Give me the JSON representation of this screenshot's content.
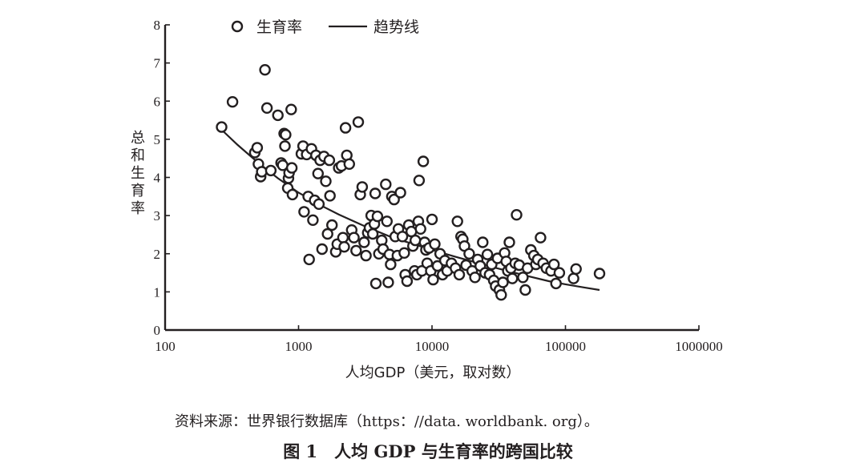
{
  "chart_data": {
    "type": "scatter",
    "xscale": "log",
    "xlim": [
      100,
      1000000
    ],
    "ylim": [
      0,
      8
    ],
    "xticks": [
      "100",
      "1000",
      "10000",
      "100000",
      "1000000"
    ],
    "yticks": [
      "0",
      "1",
      "2",
      "3",
      "4",
      "5",
      "6",
      "7",
      "8"
    ],
    "xlabel": "人均GDP（美元，取对数）",
    "ylabel": "总和生育率",
    "legend": {
      "scatter": "生育率",
      "line": "趋势线",
      "position": "top-left"
    },
    "series": [
      {
        "name": "生育率",
        "kind": "scatter",
        "points": [
          [
            265,
            5.32
          ],
          [
            320,
            5.98
          ],
          [
            470,
            4.65
          ],
          [
            490,
            4.78
          ],
          [
            500,
            4.35
          ],
          [
            520,
            4.02
          ],
          [
            530,
            4.15
          ],
          [
            560,
            6.82
          ],
          [
            580,
            5.82
          ],
          [
            620,
            4.18
          ],
          [
            700,
            5.63
          ],
          [
            740,
            4.38
          ],
          [
            760,
            4.32
          ],
          [
            780,
            5.15
          ],
          [
            790,
            4.82
          ],
          [
            800,
            5.12
          ],
          [
            830,
            3.72
          ],
          [
            840,
            3.98
          ],
          [
            850,
            4.12
          ],
          [
            880,
            5.78
          ],
          [
            890,
            4.25
          ],
          [
            900,
            3.55
          ],
          [
            1050,
            4.62
          ],
          [
            1080,
            4.82
          ],
          [
            1100,
            3.1
          ],
          [
            1150,
            4.6
          ],
          [
            1180,
            3.5
          ],
          [
            1200,
            1.85
          ],
          [
            1250,
            4.75
          ],
          [
            1280,
            2.88
          ],
          [
            1320,
            3.4
          ],
          [
            1350,
            4.58
          ],
          [
            1400,
            4.1
          ],
          [
            1420,
            3.3
          ],
          [
            1450,
            4.45
          ],
          [
            1500,
            2.12
          ],
          [
            1550,
            4.55
          ],
          [
            1600,
            3.9
          ],
          [
            1650,
            2.52
          ],
          [
            1700,
            4.45
          ],
          [
            1720,
            3.52
          ],
          [
            1780,
            2.75
          ],
          [
            1900,
            2.05
          ],
          [
            1950,
            2.25
          ],
          [
            2000,
            4.25
          ],
          [
            2100,
            4.3
          ],
          [
            2150,
            2.42
          ],
          [
            2200,
            2.18
          ],
          [
            2250,
            5.3
          ],
          [
            2300,
            4.58
          ],
          [
            2400,
            4.35
          ],
          [
            2500,
            2.62
          ],
          [
            2600,
            2.42
          ],
          [
            2700,
            2.08
          ],
          [
            2800,
            5.45
          ],
          [
            2900,
            3.55
          ],
          [
            3000,
            3.75
          ],
          [
            3100,
            2.3
          ],
          [
            3200,
            1.95
          ],
          [
            3300,
            2.55
          ],
          [
            3400,
            2.68
          ],
          [
            3500,
            3.0
          ],
          [
            3600,
            2.52
          ],
          [
            3700,
            2.78
          ],
          [
            3750,
            3.58
          ],
          [
            3800,
            1.22
          ],
          [
            3900,
            2.98
          ],
          [
            4000,
            2.0
          ],
          [
            4200,
            2.35
          ],
          [
            4300,
            2.12
          ],
          [
            4500,
            3.82
          ],
          [
            4600,
            2.85
          ],
          [
            4700,
            1.25
          ],
          [
            4800,
            1.98
          ],
          [
            4900,
            1.72
          ],
          [
            5000,
            3.5
          ],
          [
            5200,
            3.42
          ],
          [
            5300,
            2.45
          ],
          [
            5500,
            1.95
          ],
          [
            5600,
            2.65
          ],
          [
            5800,
            3.6
          ],
          [
            6000,
            2.45
          ],
          [
            6200,
            2.02
          ],
          [
            6300,
            1.45
          ],
          [
            6500,
            1.28
          ],
          [
            6700,
            2.75
          ],
          [
            7000,
            2.58
          ],
          [
            7200,
            2.2
          ],
          [
            7400,
            1.55
          ],
          [
            7500,
            2.35
          ],
          [
            7700,
            1.45
          ],
          [
            7900,
            2.85
          ],
          [
            8000,
            3.92
          ],
          [
            8200,
            2.65
          ],
          [
            8400,
            1.55
          ],
          [
            8600,
            4.42
          ],
          [
            8800,
            2.3
          ],
          [
            9000,
            2.1
          ],
          [
            9200,
            1.75
          ],
          [
            9500,
            2.15
          ],
          [
            9800,
            1.55
          ],
          [
            10000,
            2.9
          ],
          [
            10200,
            1.32
          ],
          [
            10500,
            2.25
          ],
          [
            11000,
            1.68
          ],
          [
            11500,
            2.0
          ],
          [
            12000,
            1.45
          ],
          [
            12500,
            1.82
          ],
          [
            13000,
            1.55
          ],
          [
            14000,
            1.75
          ],
          [
            15000,
            1.62
          ],
          [
            15500,
            2.85
          ],
          [
            16000,
            1.45
          ],
          [
            16500,
            2.45
          ],
          [
            17000,
            2.38
          ],
          [
            17500,
            2.2
          ],
          [
            18000,
            1.7
          ],
          [
            19000,
            2.0
          ],
          [
            20000,
            1.55
          ],
          [
            21000,
            1.38
          ],
          [
            22000,
            1.85
          ],
          [
            23000,
            1.68
          ],
          [
            24000,
            2.3
          ],
          [
            25000,
            1.5
          ],
          [
            26000,
            1.98
          ],
          [
            27000,
            1.45
          ],
          [
            28000,
            1.72
          ],
          [
            29000,
            1.3
          ],
          [
            30000,
            1.15
          ],
          [
            31000,
            1.88
          ],
          [
            32000,
            1.05
          ],
          [
            33000,
            0.92
          ],
          [
            34000,
            1.25
          ],
          [
            35000,
            2.02
          ],
          [
            36000,
            1.8
          ],
          [
            37000,
            1.55
          ],
          [
            38000,
            2.3
          ],
          [
            39000,
            1.62
          ],
          [
            40000,
            1.35
          ],
          [
            42000,
            1.75
          ],
          [
            43000,
            3.02
          ],
          [
            45000,
            1.7
          ],
          [
            48000,
            1.38
          ],
          [
            50000,
            1.05
          ],
          [
            52000,
            1.62
          ],
          [
            55000,
            2.1
          ],
          [
            58000,
            1.95
          ],
          [
            60000,
            1.72
          ],
          [
            62000,
            1.85
          ],
          [
            65000,
            2.42
          ],
          [
            68000,
            1.75
          ],
          [
            72000,
            1.62
          ],
          [
            78000,
            1.55
          ],
          [
            82000,
            1.72
          ],
          [
            85000,
            1.22
          ],
          [
            90000,
            1.5
          ],
          [
            115000,
            1.35
          ],
          [
            120000,
            1.6
          ],
          [
            180000,
            1.48
          ]
        ]
      },
      {
        "name": "趋势线",
        "kind": "line",
        "points": [
          [
            265,
            5.25
          ],
          [
            350,
            4.85
          ],
          [
            500,
            4.38
          ],
          [
            700,
            3.98
          ],
          [
            1000,
            3.6
          ],
          [
            1500,
            3.25
          ],
          [
            2000,
            3.03
          ],
          [
            3000,
            2.75
          ],
          [
            4000,
            2.57
          ],
          [
            5000,
            2.43
          ],
          [
            7000,
            2.27
          ],
          [
            10000,
            2.1
          ],
          [
            15000,
            1.92
          ],
          [
            20000,
            1.8
          ],
          [
            30000,
            1.63
          ],
          [
            50000,
            1.43
          ],
          [
            75000,
            1.28
          ],
          [
            100000,
            1.2
          ],
          [
            140000,
            1.11
          ],
          [
            180000,
            1.05
          ]
        ]
      }
    ]
  },
  "source": "资料来源：世界银行数据库（https：//data. worldbank. org）。",
  "caption": "图 1　人均 GDP 与生育率的跨国比较"
}
